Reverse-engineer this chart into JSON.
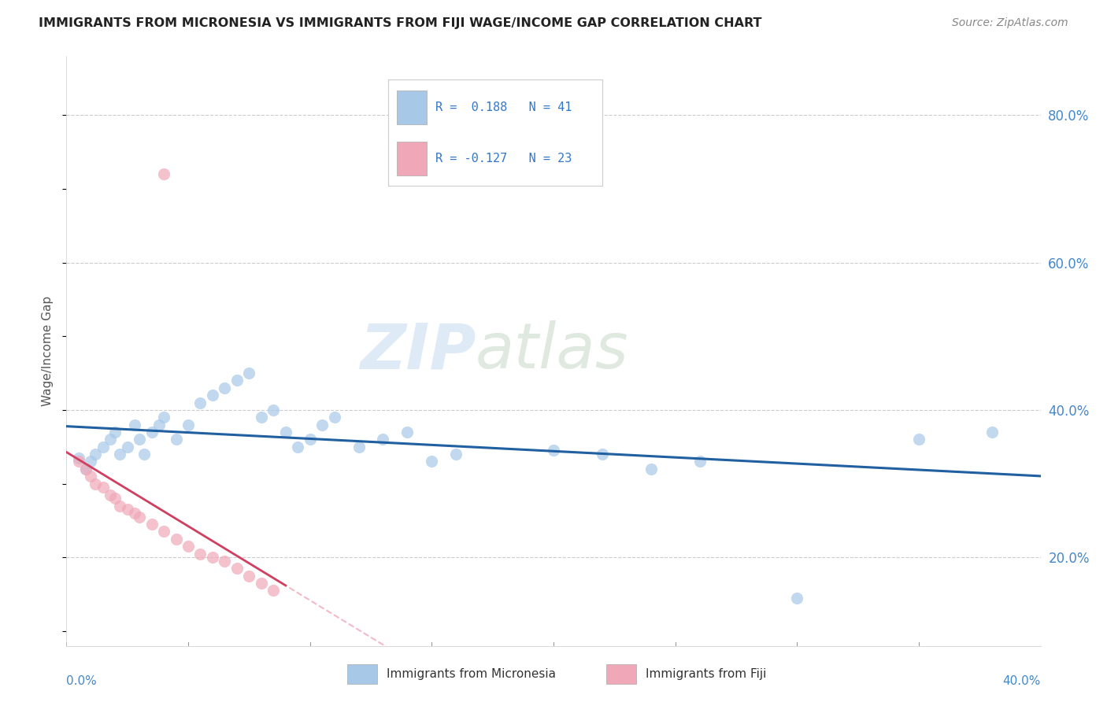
{
  "title": "IMMIGRANTS FROM MICRONESIA VS IMMIGRANTS FROM FIJI WAGE/INCOME GAP CORRELATION CHART",
  "source": "Source: ZipAtlas.com",
  "ylabel": "Wage/Income Gap",
  "ytick_values": [
    0.2,
    0.4,
    0.6,
    0.8
  ],
  "xlim": [
    0.0,
    0.4
  ],
  "ylim": [
    0.08,
    0.88
  ],
  "blue_color": "#a8c8e8",
  "pink_color": "#f0a8b8",
  "blue_line_color": "#2060a0",
  "pink_line_color": "#d04060",
  "pink_dash_color": "#f0a8b8",
  "micronesia_x": [
    0.005,
    0.008,
    0.01,
    0.012,
    0.015,
    0.018,
    0.02,
    0.022,
    0.025,
    0.028,
    0.03,
    0.032,
    0.035,
    0.038,
    0.04,
    0.045,
    0.05,
    0.055,
    0.06,
    0.065,
    0.07,
    0.075,
    0.08,
    0.085,
    0.09,
    0.095,
    0.1,
    0.105,
    0.11,
    0.12,
    0.13,
    0.14,
    0.15,
    0.16,
    0.2,
    0.22,
    0.24,
    0.26,
    0.3,
    0.35,
    0.38
  ],
  "micronesia_y": [
    0.335,
    0.32,
    0.33,
    0.34,
    0.35,
    0.36,
    0.37,
    0.34,
    0.35,
    0.38,
    0.36,
    0.34,
    0.37,
    0.38,
    0.39,
    0.36,
    0.38,
    0.41,
    0.42,
    0.43,
    0.44,
    0.45,
    0.39,
    0.4,
    0.37,
    0.35,
    0.36,
    0.38,
    0.39,
    0.35,
    0.36,
    0.37,
    0.33,
    0.34,
    0.345,
    0.34,
    0.32,
    0.33,
    0.145,
    0.36,
    0.37
  ],
  "fiji_x": [
    0.005,
    0.008,
    0.01,
    0.012,
    0.015,
    0.018,
    0.02,
    0.022,
    0.025,
    0.028,
    0.03,
    0.035,
    0.04,
    0.045,
    0.05,
    0.055,
    0.06,
    0.065,
    0.07,
    0.075,
    0.08,
    0.085,
    0.04
  ],
  "fiji_y": [
    0.33,
    0.32,
    0.31,
    0.3,
    0.295,
    0.285,
    0.28,
    0.27,
    0.265,
    0.26,
    0.255,
    0.245,
    0.235,
    0.225,
    0.215,
    0.205,
    0.2,
    0.195,
    0.185,
    0.175,
    0.165,
    0.155,
    0.72
  ]
}
